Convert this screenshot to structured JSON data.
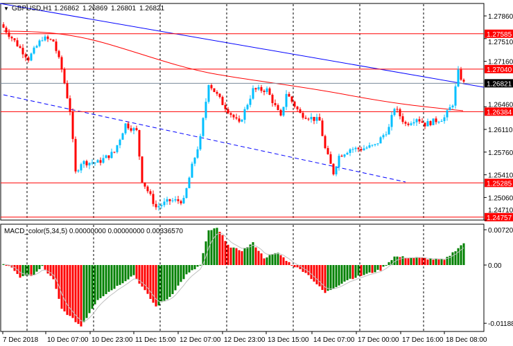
{
  "header": {
    "symbol": "GBPUSD,H1",
    "open": "1.26862",
    "high": "1.26869",
    "low": "1.26801",
    "close": "1.26821"
  },
  "macd_label": "MACD_color(5,34,5) 0.00000000 0.00000000 0.00336570",
  "colors": {
    "bull": "#00bfff",
    "bear": "#ff0000",
    "level": "#ff0000",
    "trend": "#0000ff",
    "ma": "#ff0000",
    "macd_up": "#008000",
    "macd_down": "#ff0000",
    "signal": "#c0c0c0"
  },
  "chart_data": [
    {
      "type": "candlestick",
      "title": "GBPUSD,H1",
      "ylim": [
        1.2471,
        1.2795
      ],
      "price_ticks": [
        "1.27860",
        "1.27510",
        "1.27160",
        "1.26460",
        "1.26110",
        "1.25760",
        "1.25410",
        "1.25060",
        "1.24710"
      ],
      "levels": [
        {
          "label": "1.27585",
          "value": 1.27585
        },
        {
          "label": "1.27040",
          "value": 1.2704
        },
        {
          "label": "1.26384",
          "value": 1.26384
        },
        {
          "label": "1.25285",
          "value": 1.25285
        },
        {
          "label": "1.24757",
          "value": 1.24757
        }
      ],
      "current": {
        "label": "1.26821",
        "value": 1.26821
      },
      "bars": 167,
      "close_waypoints": [
        [
          0,
          1.2768
        ],
        [
          4,
          1.2747
        ],
        [
          9,
          1.272
        ],
        [
          14,
          1.2752
        ],
        [
          18,
          1.2747
        ],
        [
          21,
          1.2704
        ],
        [
          24,
          1.264
        ],
        [
          26,
          1.2544
        ],
        [
          28,
          1.256
        ],
        [
          34,
          1.256
        ],
        [
          40,
          1.2576
        ],
        [
          44,
          1.2619
        ],
        [
          48,
          1.2608
        ],
        [
          50,
          1.2533
        ],
        [
          55,
          1.2491
        ],
        [
          60,
          1.2501
        ],
        [
          65,
          1.2501
        ],
        [
          68,
          1.2554
        ],
        [
          71,
          1.2597
        ],
        [
          74,
          1.2683
        ],
        [
          79,
          1.2651
        ],
        [
          85,
          1.2619
        ],
        [
          90,
          1.2672
        ],
        [
          95,
          1.2672
        ],
        [
          100,
          1.2629
        ],
        [
          102,
          1.2667
        ],
        [
          107,
          1.2635
        ],
        [
          114,
          1.2624
        ],
        [
          116,
          1.2581
        ],
        [
          119,
          1.2544
        ],
        [
          121,
          1.257
        ],
        [
          125,
          1.2581
        ],
        [
          129,
          1.2581
        ],
        [
          134,
          1.2586
        ],
        [
          139,
          1.2613
        ],
        [
          141,
          1.2645
        ],
        [
          145,
          1.2619
        ],
        [
          149,
          1.2629
        ],
        [
          152,
          1.2619
        ],
        [
          159,
          1.2629
        ],
        [
          162,
          1.2651
        ],
        [
          164,
          1.2699
        ],
        [
          166,
          1.2682
        ]
      ]
    },
    {
      "type": "bar",
      "title": "MACD_color(5,34,5)",
      "ylim": [
        -0.011884,
        0.007202
      ],
      "tick_labels": [
        "0.007202",
        "0.00",
        "-0.011884"
      ],
      "waypoints": [
        [
          0,
          0.0003
        ],
        [
          4,
          -0.001
        ],
        [
          6,
          -0.0025
        ],
        [
          11,
          -0.002
        ],
        [
          14,
          -0.0003
        ],
        [
          18,
          -0.003
        ],
        [
          21,
          -0.009
        ],
        [
          28,
          -0.0125
        ],
        [
          34,
          -0.007
        ],
        [
          47,
          -0.002
        ],
        [
          55,
          -0.0085
        ],
        [
          60,
          -0.0065
        ],
        [
          66,
          -0.002
        ],
        [
          71,
          0.0
        ],
        [
          74,
          0.007
        ],
        [
          77,
          0.0075
        ],
        [
          82,
          0.0035
        ],
        [
          86,
          0.003
        ],
        [
          90,
          0.0045
        ],
        [
          94,
          0.0015
        ],
        [
          99,
          0.0025
        ],
        [
          104,
          0.0
        ],
        [
          109,
          -0.0015
        ],
        [
          116,
          -0.0057
        ],
        [
          124,
          -0.003
        ],
        [
          136,
          -0.001
        ],
        [
          141,
          0.0017
        ],
        [
          149,
          0.0015
        ],
        [
          159,
          0.001
        ],
        [
          166,
          0.0045
        ]
      ]
    }
  ],
  "time_labels": [
    "7 Dec 2018",
    "10 Dec 07:00",
    "10 Dec 23:00",
    "11 Dec 15:00",
    "12 Dec 07:00",
    "12 Dec 23:00",
    "13 Dec 15:00",
    "14 Dec 07:00",
    "17 Dec 00:00",
    "17 Dec 16:00",
    "18 Dec 08:00"
  ]
}
